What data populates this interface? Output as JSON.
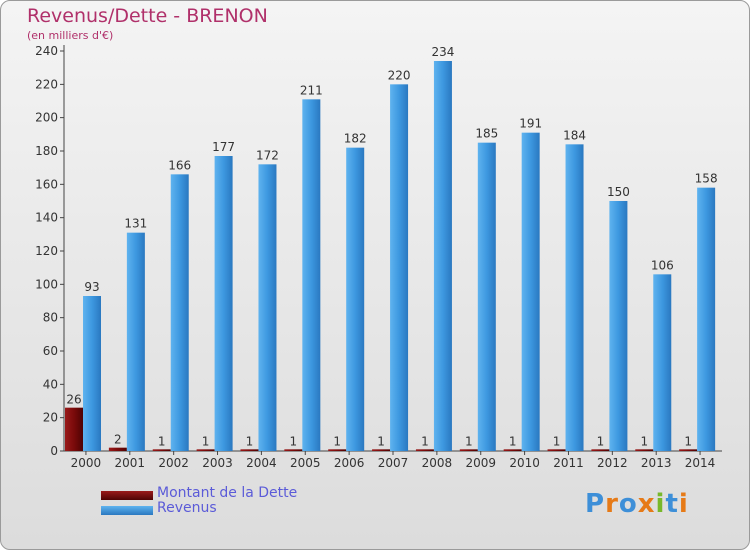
{
  "title": "Revenus/Dette - BRENON",
  "subtitle": "(en milliers d'€)",
  "colors": {
    "dette": "#7a0a0a",
    "revenus": "#3d98e0",
    "title": "#b0306a",
    "legend_text": "#5b5bd8"
  },
  "legend": [
    {
      "label": "Montant de la Dette"
    },
    {
      "label": "Revenus"
    }
  ],
  "logo": {
    "text": "Proxiti",
    "letters": [
      "P",
      "r",
      "o",
      "x",
      "i",
      "t",
      "i"
    ]
  },
  "chart_data": {
    "type": "bar",
    "title": "Revenus/Dette - BRENON",
    "ylabel": "(en milliers d'€)",
    "xlabel": "",
    "categories": [
      "2000",
      "2001",
      "2002",
      "2003",
      "2004",
      "2005",
      "2006",
      "2007",
      "2008",
      "2009",
      "2010",
      "2011",
      "2012",
      "2013",
      "2014"
    ],
    "series": [
      {
        "name": "Montant de la Dette",
        "values": [
          26,
          2,
          1,
          1,
          1,
          1,
          1,
          1,
          1,
          1,
          1,
          1,
          1,
          1,
          1
        ]
      },
      {
        "name": "Revenus",
        "values": [
          93,
          131,
          166,
          177,
          172,
          211,
          182,
          220,
          234,
          185,
          191,
          184,
          150,
          106,
          158
        ]
      }
    ],
    "ylim": [
      0,
      240
    ],
    "yticks": [
      0,
      20,
      40,
      60,
      80,
      100,
      120,
      140,
      160,
      180,
      200,
      220,
      240
    ],
    "grid": false,
    "legend_position": "bottom-left"
  }
}
